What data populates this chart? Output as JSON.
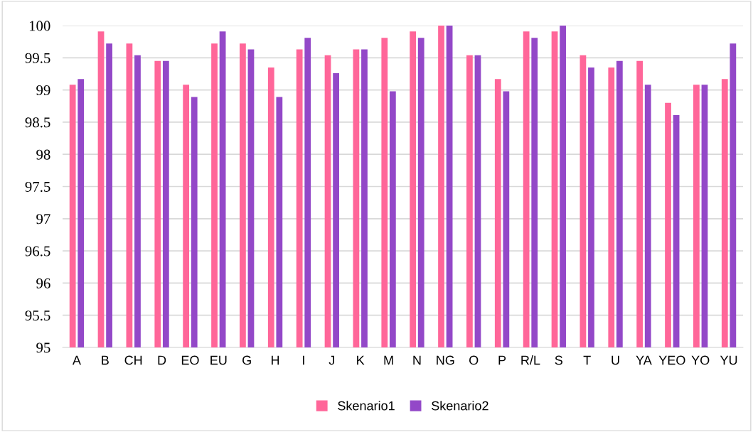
{
  "chart_data": {
    "type": "bar",
    "categories": [
      "A",
      "B",
      "CH",
      "D",
      "EO",
      "EU",
      "G",
      "H",
      "I",
      "J",
      "K",
      "M",
      "N",
      "NG",
      "O",
      "P",
      "R/L",
      "S",
      "T",
      "U",
      "YA",
      "YEO",
      "YO",
      "YU"
    ],
    "series": [
      {
        "name": "Skenario1",
        "color": "#ff6699",
        "values": [
          99.08,
          99.91,
          99.72,
          99.45,
          99.08,
          99.72,
          99.72,
          99.35,
          99.63,
          99.54,
          99.63,
          99.81,
          99.91,
          100,
          99.54,
          99.17,
          99.91,
          99.91,
          99.54,
          99.35,
          99.45,
          98.8,
          99.08,
          99.17
        ]
      },
      {
        "name": "Skenario2",
        "color": "#9348c8",
        "values": [
          99.17,
          99.72,
          99.54,
          99.45,
          98.89,
          99.91,
          99.63,
          98.89,
          99.81,
          99.26,
          99.63,
          98.98,
          99.81,
          100,
          99.54,
          98.98,
          99.81,
          100,
          99.35,
          99.45,
          99.08,
          98.61,
          99.08,
          99.72
        ]
      }
    ],
    "ylim": [
      95,
      100
    ],
    "yticks": [
      95,
      95.5,
      96,
      96.5,
      97,
      97.5,
      98,
      98.5,
      99,
      99.5,
      100
    ],
    "grid": "y",
    "legend": "bottom"
  }
}
